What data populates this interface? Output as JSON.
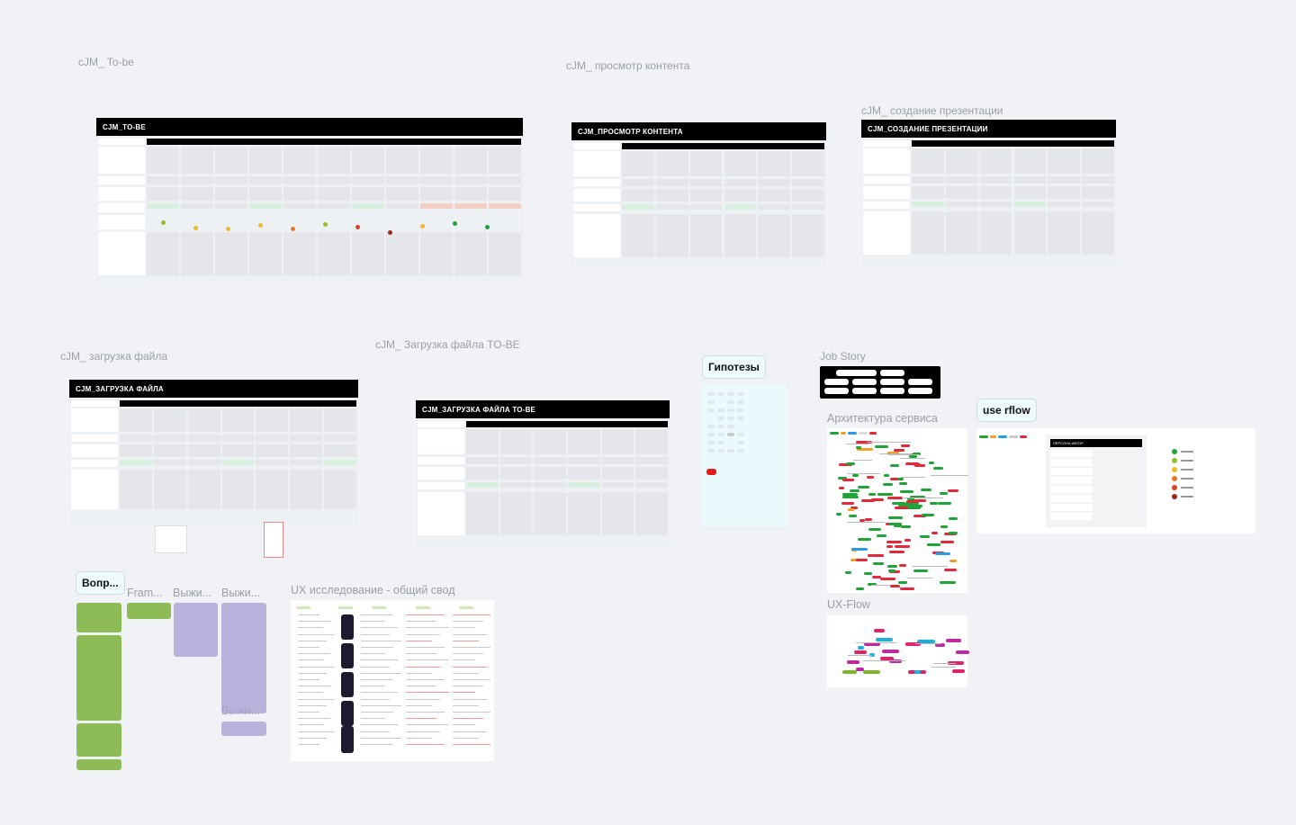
{
  "canvas": {
    "frames": [
      {
        "id": "cjm-to-be",
        "label": "cJM_ To-be",
        "header": "CJM_TO-BE"
      },
      {
        "id": "cjm-view",
        "label": "cJM_ просмотр контента",
        "header": "CJM_ПРОСМОТР КОНТЕНТА"
      },
      {
        "id": "cjm-presentation",
        "label": "cJM_ создание презентации",
        "header": "CJM_СОЗДАНИЕ ПРЕЗЕНТАЦИИ"
      },
      {
        "id": "cjm-upload",
        "label": "cJM_ загрузка файла",
        "header": "CJM_ЗАГРУЗКА ФАЙЛА"
      },
      {
        "id": "cjm-upload-to-be",
        "label": "cJM_ Загрузка файла TO-BE",
        "header": "CJM_ЗАГРУЗКА ФАЙЛА TO-BE"
      }
    ],
    "hypotheses_button": "Гипотезы",
    "job_story_label": "Job Story",
    "use_rflow_button": "use rflow",
    "architecture_label": "Архитектура сервиса",
    "ux_flow_label": "UX-Flow",
    "questions_button": "Вопр...",
    "frame_label": "Fram...",
    "survival_label_1": "Выжи...",
    "survival_label_2": "Выжи...",
    "survival_label_3": "Выжи...",
    "ux_research_label": "UX исследование - общий свод",
    "persona_header": "ПЕРСОНА АВТОР",
    "colors": {
      "green": "#22a33a",
      "lime": "#8fbf2a",
      "yellow": "#f0bb2a",
      "orange": "#e8772a",
      "red": "#d94325",
      "darkred": "#a0251a",
      "canvas": "#f0f2f5"
    }
  }
}
